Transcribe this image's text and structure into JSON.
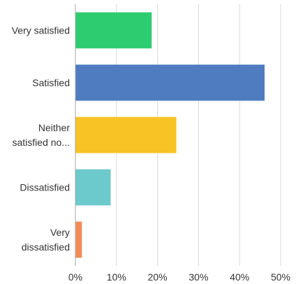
{
  "chart_data": {
    "type": "bar",
    "orientation": "horizontal",
    "categories": [
      [
        "Very satisfied"
      ],
      [
        "Satisfied"
      ],
      [
        "Neither",
        "satisfied no..."
      ],
      [
        "Dissatisfied"
      ],
      [
        "Very",
        "dissatisfied"
      ]
    ],
    "values": [
      18.5,
      46,
      24.5,
      8.5,
      1.5
    ],
    "colors": [
      "#2ecc71",
      "#4f7cc0",
      "#f7c325",
      "#6cc9cc",
      "#f38a55"
    ],
    "xlim": [
      0,
      50
    ],
    "ticks": [
      0,
      10,
      20,
      30,
      40,
      50
    ],
    "tick_labels": [
      "0%",
      "10%",
      "20%",
      "30%",
      "40%",
      "50%"
    ],
    "grid": true,
    "title": "",
    "xlabel": "",
    "ylabel": ""
  }
}
